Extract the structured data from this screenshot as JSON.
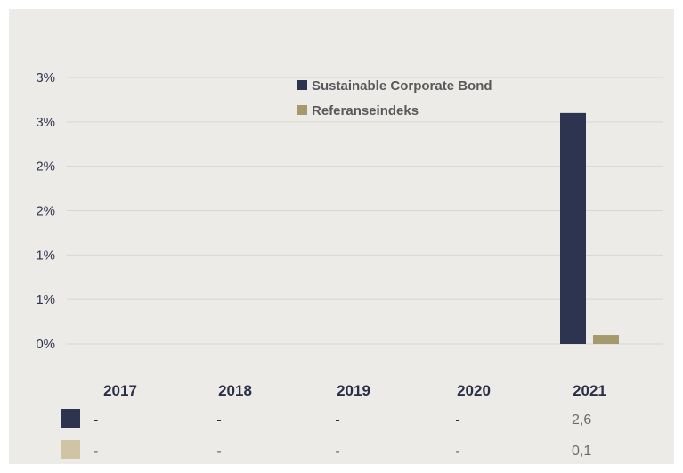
{
  "colors": {
    "series1": "#2d3450",
    "series2": "#a59a6e",
    "series2_table": "#cfc4a3",
    "panel": "#edebe8",
    "grid": "#d9d6d0"
  },
  "chart_data": {
    "type": "bar",
    "categories": [
      "2017",
      "2018",
      "2019",
      "2020",
      "2021"
    ],
    "series": [
      {
        "name": "Sustainable Corporate Bond",
        "values": [
          null,
          null,
          null,
          null,
          2.6
        ]
      },
      {
        "name": "Referanseindeks",
        "values": [
          null,
          null,
          null,
          null,
          0.1
        ]
      }
    ],
    "y_tick_labels": [
      "0%",
      "1%",
      "1%",
      "2%",
      "2%",
      "3%",
      "3%"
    ],
    "ylim": [
      0,
      3
    ],
    "grid": true,
    "legend_position": "top-center",
    "table": {
      "rows": [
        {
          "series": "Sustainable Corporate Bond",
          "cells": [
            "-",
            "-",
            "-",
            "-",
            "2,6"
          ]
        },
        {
          "series": "Referanseindeks",
          "cells": [
            "-",
            "-",
            "-",
            "-",
            "0,1"
          ]
        }
      ]
    }
  }
}
